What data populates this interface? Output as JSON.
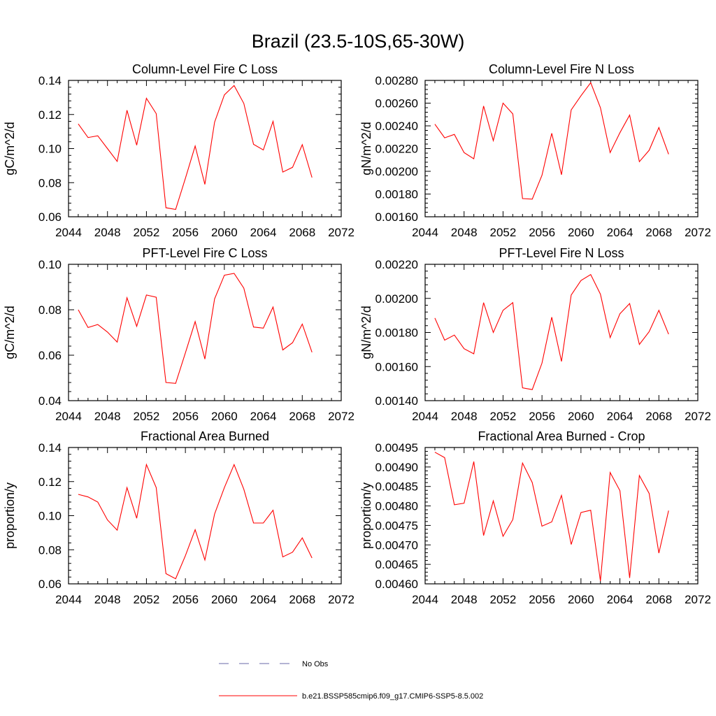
{
  "figure_title": "Brazil (23.5-10S,65-30W)",
  "legend": {
    "items": [
      {
        "label": "No Obs",
        "style": "dashed",
        "color": "#6a6aa8"
      },
      {
        "label": "b.e21.BSSP585cmip6.f09_g17.CMIP6-SSP5-8.5.002",
        "style": "solid",
        "color": "#ff0000"
      }
    ]
  },
  "chart_data": [
    {
      "type": "line",
      "title": "Column-Level Fire C Loss",
      "xlabel": "",
      "ylabel": "gC/m^2/d",
      "xlim": [
        2044,
        2072
      ],
      "ylim": [
        0.06,
        0.14
      ],
      "xticks": [
        "2044",
        "2048",
        "2052",
        "2056",
        "2060",
        "2064",
        "2068",
        "2072"
      ],
      "yticks": [
        "0.06",
        "0.08",
        "0.10",
        "0.12",
        "0.14"
      ],
      "series": [
        {
          "name": "b.e21.BSSP585cmip6.f09_g17.CMIP6-SSP5-8.5.002",
          "color": "#ff0000",
          "x": [
            2045,
            2046,
            2047,
            2048,
            2049,
            2050,
            2051,
            2052,
            2053,
            2054,
            2055,
            2056,
            2057,
            2058,
            2059,
            2060,
            2061,
            2062,
            2063,
            2064,
            2065,
            2066,
            2067,
            2068,
            2069
          ],
          "values": [
            0.1145,
            0.1065,
            0.1075,
            0.1,
            0.0925,
            0.1225,
            0.102,
            0.1295,
            0.1205,
            0.0653,
            0.0643,
            0.0825,
            0.1015,
            0.079,
            0.1155,
            0.1315,
            0.137,
            0.1265,
            0.1025,
            0.0992,
            0.116,
            0.0862,
            0.089,
            0.1023,
            0.083
          ]
        }
      ]
    },
    {
      "type": "line",
      "title": "Column-Level Fire N Loss",
      "xlabel": "",
      "ylabel": "gN/m^2/d",
      "xlim": [
        2044,
        2072
      ],
      "ylim": [
        0.0016,
        0.0028
      ],
      "xticks": [
        "2044",
        "2048",
        "2052",
        "2056",
        "2060",
        "2064",
        "2068",
        "2072"
      ],
      "yticks": [
        "0.00160",
        "0.00180",
        "0.00200",
        "0.00220",
        "0.00240",
        "0.00260",
        "0.00280"
      ],
      "series": [
        {
          "name": "b.e21.BSSP585cmip6.f09_g17.CMIP6-SSP5-8.5.002",
          "color": "#ff0000",
          "x": [
            2045,
            2046,
            2047,
            2048,
            2049,
            2050,
            2051,
            2052,
            2053,
            2054,
            2055,
            2056,
            2057,
            2058,
            2059,
            2060,
            2061,
            2062,
            2063,
            2064,
            2065,
            2066,
            2067,
            2068,
            2069
          ],
          "values": [
            0.002415,
            0.002295,
            0.002325,
            0.002165,
            0.00211,
            0.002575,
            0.00227,
            0.0026,
            0.002505,
            0.00176,
            0.001755,
            0.001965,
            0.002335,
            0.00197,
            0.00254,
            0.002665,
            0.00278,
            0.00256,
            0.002165,
            0.00234,
            0.002495,
            0.002085,
            0.002185,
            0.002385,
            0.00215
          ]
        }
      ]
    },
    {
      "type": "line",
      "title": "PFT-Level Fire C Loss",
      "xlabel": "",
      "ylabel": "gC/m^2/d",
      "xlim": [
        2044,
        2072
      ],
      "ylim": [
        0.04,
        0.1
      ],
      "xticks": [
        "2044",
        "2048",
        "2052",
        "2056",
        "2060",
        "2064",
        "2068",
        "2072"
      ],
      "yticks": [
        "0.04",
        "0.06",
        "0.08",
        "0.10"
      ],
      "series": [
        {
          "name": "b.e21.BSSP585cmip6.f09_g17.CMIP6-SSP5-8.5.002",
          "color": "#ff0000",
          "x": [
            2045,
            2046,
            2047,
            2048,
            2049,
            2050,
            2051,
            2052,
            2053,
            2054,
            2055,
            2056,
            2057,
            2058,
            2059,
            2060,
            2061,
            2062,
            2063,
            2064,
            2065,
            2066,
            2067,
            2068,
            2069
          ],
          "values": [
            0.08,
            0.0722,
            0.0735,
            0.0702,
            0.0658,
            0.0853,
            0.0727,
            0.0865,
            0.0855,
            0.048,
            0.0476,
            0.061,
            0.0748,
            0.0583,
            0.0848,
            0.0952,
            0.096,
            0.0895,
            0.0724,
            0.0719,
            0.0812,
            0.0623,
            0.0655,
            0.0737,
            0.0613
          ]
        }
      ]
    },
    {
      "type": "line",
      "title": "PFT-Level Fire N Loss",
      "xlabel": "",
      "ylabel": "gN/m^2/d",
      "xlim": [
        2044,
        2072
      ],
      "ylim": [
        0.0014,
        0.0022
      ],
      "xticks": [
        "2044",
        "2048",
        "2052",
        "2056",
        "2060",
        "2064",
        "2068",
        "2072"
      ],
      "yticks": [
        "0.00140",
        "0.00160",
        "0.00180",
        "0.00200",
        "0.00220"
      ],
      "series": [
        {
          "name": "b.e21.BSSP585cmip6.f09_g17.CMIP6-SSP5-8.5.002",
          "color": "#ff0000",
          "x": [
            2045,
            2046,
            2047,
            2048,
            2049,
            2050,
            2051,
            2052,
            2053,
            2054,
            2055,
            2056,
            2057,
            2058,
            2059,
            2060,
            2061,
            2062,
            2063,
            2064,
            2065,
            2066,
            2067,
            2068,
            2069
          ],
          "values": [
            0.001885,
            0.001755,
            0.001785,
            0.001705,
            0.001675,
            0.001975,
            0.0018,
            0.00193,
            0.001975,
            0.001475,
            0.001465,
            0.00162,
            0.00189,
            0.00163,
            0.00202,
            0.002105,
            0.00214,
            0.002025,
            0.00177,
            0.00191,
            0.00197,
            0.00173,
            0.001805,
            0.00193,
            0.00179
          ]
        }
      ]
    },
    {
      "type": "line",
      "title": "Fractional Area Burned",
      "xlabel": "",
      "ylabel": "proportion/y",
      "xlim": [
        2044,
        2072
      ],
      "ylim": [
        0.06,
        0.14
      ],
      "xticks": [
        "2044",
        "2048",
        "2052",
        "2056",
        "2060",
        "2064",
        "2068",
        "2072"
      ],
      "yticks": [
        "0.06",
        "0.08",
        "0.10",
        "0.12",
        "0.14"
      ],
      "series": [
        {
          "name": "b.e21.BSSP585cmip6.f09_g17.CMIP6-SSP5-8.5.002",
          "color": "#ff0000",
          "x": [
            2045,
            2046,
            2047,
            2048,
            2049,
            2050,
            2051,
            2052,
            2053,
            2054,
            2055,
            2056,
            2057,
            2058,
            2059,
            2060,
            2061,
            2062,
            2063,
            2064,
            2065,
            2066,
            2067,
            2068,
            2069
          ],
          "values": [
            0.1125,
            0.111,
            0.108,
            0.0975,
            0.0915,
            0.1165,
            0.0985,
            0.13,
            0.1165,
            0.066,
            0.063,
            0.0765,
            0.0918,
            0.074,
            0.101,
            0.1165,
            0.13,
            0.1155,
            0.0957,
            0.0957,
            0.1032,
            0.0758,
            0.0786,
            0.087,
            0.0752
          ]
        }
      ]
    },
    {
      "type": "line",
      "title": "Fractional Area Burned - Crop",
      "xlabel": "",
      "ylabel": "proportion/y",
      "xlim": [
        2044,
        2072
      ],
      "ylim": [
        0.0046,
        0.00495
      ],
      "xticks": [
        "2044",
        "2048",
        "2052",
        "2056",
        "2060",
        "2064",
        "2068",
        "2072"
      ],
      "yticks": [
        "0.00460",
        "0.00465",
        "0.00470",
        "0.00475",
        "0.00480",
        "0.00485",
        "0.00490",
        "0.00495"
      ],
      "series": [
        {
          "name": "b.e21.BSSP585cmip6.f09_g17.CMIP6-SSP5-8.5.002",
          "color": "#ff0000",
          "x": [
            2045,
            2046,
            2047,
            2048,
            2049,
            2050,
            2051,
            2052,
            2053,
            2054,
            2055,
            2056,
            2057,
            2058,
            2059,
            2060,
            2061,
            2062,
            2063,
            2064,
            2065,
            2066,
            2067,
            2068,
            2069
          ],
          "values": [
            0.004938,
            0.004924,
            0.004803,
            0.004807,
            0.004914,
            0.004724,
            0.004813,
            0.004722,
            0.004765,
            0.00491,
            0.00486,
            0.004748,
            0.004759,
            0.004827,
            0.004701,
            0.004783,
            0.004789,
            0.004607,
            0.004886,
            0.004839,
            0.004615,
            0.004878,
            0.004832,
            0.004679,
            0.004788
          ]
        }
      ]
    }
  ]
}
